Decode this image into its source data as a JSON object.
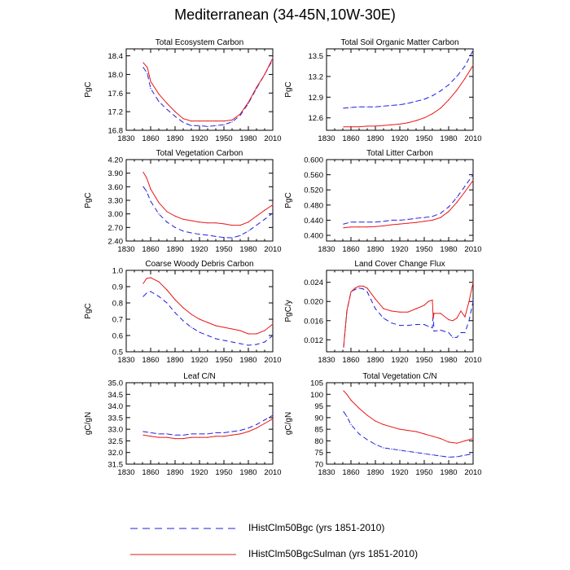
{
  "title": "Mediterranean (34-45N,10W-30E)",
  "colors": {
    "bgc": "#1f1fe0",
    "sulman": "#e81818",
    "axis": "#000000"
  },
  "legend": [
    {
      "label": "IHistClm50Bgc (yrs 1851-2010)",
      "color": "#1f1fe0",
      "style": "dashed"
    },
    {
      "label": "IHistClm50BgcSulman (yrs 1851-2010)",
      "color": "#e81818",
      "style": "solid"
    }
  ],
  "chart_data": [
    {
      "type": "line",
      "title": "Total Ecosystem Carbon",
      "ylabel": "PgC",
      "xlim": [
        1830,
        2010
      ],
      "xticks": [
        "1830",
        "1860",
        "1890",
        "1920",
        "1950",
        "1980",
        "2010"
      ],
      "ylim": [
        16.8,
        18.55
      ],
      "yticks": [
        "16.8",
        "17.2",
        "17.6",
        "18.0",
        "18.4"
      ],
      "series": [
        {
          "name": "IHistClm50Bgc",
          "x": [
            1851,
            1856,
            1860,
            1870,
            1880,
            1890,
            1900,
            1910,
            1920,
            1930,
            1940,
            1950,
            1960,
            1970,
            1980,
            1990,
            2000,
            2010
          ],
          "y": [
            18.15,
            18.02,
            17.7,
            17.42,
            17.25,
            17.1,
            16.97,
            16.9,
            16.9,
            16.88,
            16.9,
            16.92,
            16.98,
            17.12,
            17.38,
            17.7,
            18.0,
            18.32
          ]
        },
        {
          "name": "IHistClm50BgcSulman",
          "x": [
            1851,
            1856,
            1860,
            1870,
            1880,
            1890,
            1900,
            1910,
            1920,
            1930,
            1940,
            1950,
            1960,
            1970,
            1980,
            1990,
            2000,
            2010
          ],
          "y": [
            18.25,
            18.15,
            17.85,
            17.58,
            17.38,
            17.2,
            17.05,
            17.0,
            17.0,
            17.0,
            17.0,
            17.0,
            17.02,
            17.15,
            17.4,
            17.72,
            18.0,
            18.35
          ]
        }
      ]
    },
    {
      "type": "line",
      "title": "Total Soil Organic Matter Carbon",
      "ylabel": "PgC",
      "xlim": [
        1830,
        2010
      ],
      "xticks": [
        "1830",
        "1860",
        "1890",
        "1920",
        "1950",
        "1980",
        "2010"
      ],
      "ylim": [
        12.42,
        13.6
      ],
      "yticks": [
        "12.6",
        "12.9",
        "13.2",
        "13.5"
      ],
      "series": [
        {
          "name": "IHistClm50Bgc",
          "x": [
            1851,
            1860,
            1870,
            1880,
            1890,
            1900,
            1910,
            1920,
            1930,
            1940,
            1950,
            1960,
            1970,
            1980,
            1990,
            2000,
            2010
          ],
          "y": [
            12.74,
            12.75,
            12.76,
            12.76,
            12.76,
            12.77,
            12.78,
            12.79,
            12.81,
            12.84,
            12.87,
            12.92,
            12.99,
            13.08,
            13.2,
            13.35,
            13.58
          ]
        },
        {
          "name": "IHistClm50BgcSulman",
          "x": [
            1851,
            1860,
            1870,
            1880,
            1890,
            1900,
            1910,
            1920,
            1930,
            1940,
            1950,
            1960,
            1970,
            1980,
            1990,
            2000,
            2010
          ],
          "y": [
            12.47,
            12.47,
            12.47,
            12.48,
            12.48,
            12.49,
            12.5,
            12.51,
            12.53,
            12.56,
            12.6,
            12.66,
            12.74,
            12.86,
            13.0,
            13.17,
            13.36
          ]
        }
      ]
    },
    {
      "type": "line",
      "title": "Total Vegetation Carbon",
      "ylabel": "PgC",
      "xlim": [
        1830,
        2010
      ],
      "xticks": [
        "1830",
        "1860",
        "1890",
        "1920",
        "1950",
        "1980",
        "2010"
      ],
      "ylim": [
        2.4,
        4.2
      ],
      "yticks": [
        "2.40",
        "2.70",
        "3.00",
        "3.30",
        "3.60",
        "3.90",
        "4.20"
      ],
      "series": [
        {
          "name": "IHistClm50Bgc",
          "x": [
            1851,
            1855,
            1860,
            1870,
            1880,
            1890,
            1900,
            1910,
            1920,
            1930,
            1940,
            1950,
            1960,
            1970,
            1980,
            1990,
            2000,
            2010
          ],
          "y": [
            3.6,
            3.5,
            3.28,
            3.0,
            2.82,
            2.7,
            2.62,
            2.58,
            2.55,
            2.53,
            2.5,
            2.48,
            2.47,
            2.52,
            2.62,
            2.75,
            2.88,
            3.02
          ]
        },
        {
          "name": "IHistClm50BgcSulman",
          "x": [
            1851,
            1855,
            1860,
            1870,
            1880,
            1890,
            1900,
            1910,
            1920,
            1930,
            1940,
            1950,
            1960,
            1970,
            1980,
            1990,
            2000,
            2010
          ],
          "y": [
            3.92,
            3.8,
            3.55,
            3.25,
            3.05,
            2.95,
            2.88,
            2.85,
            2.82,
            2.8,
            2.8,
            2.78,
            2.75,
            2.75,
            2.82,
            2.95,
            3.08,
            3.2
          ]
        }
      ]
    },
    {
      "type": "line",
      "title": "Total Litter Carbon",
      "ylabel": "PgC",
      "xlim": [
        1830,
        2010
      ],
      "xticks": [
        "1830",
        "1860",
        "1890",
        "1920",
        "1950",
        "1980",
        "2010"
      ],
      "ylim": [
        0.385,
        0.6
      ],
      "yticks": [
        "0.400",
        "0.440",
        "0.480",
        "0.520",
        "0.560",
        "0.600"
      ],
      "series": [
        {
          "name": "IHistClm50Bgc",
          "x": [
            1851,
            1860,
            1870,
            1880,
            1890,
            1900,
            1910,
            1920,
            1930,
            1940,
            1950,
            1960,
            1970,
            1980,
            1990,
            2000,
            2010
          ],
          "y": [
            0.43,
            0.435,
            0.435,
            0.435,
            0.435,
            0.437,
            0.44,
            0.44,
            0.442,
            0.445,
            0.447,
            0.45,
            0.458,
            0.475,
            0.5,
            0.53,
            0.56
          ]
        },
        {
          "name": "IHistClm50BgcSulman",
          "x": [
            1851,
            1860,
            1870,
            1880,
            1890,
            1900,
            1910,
            1920,
            1930,
            1940,
            1950,
            1960,
            1970,
            1980,
            1990,
            2000,
            2010
          ],
          "y": [
            0.42,
            0.422,
            0.422,
            0.422,
            0.423,
            0.425,
            0.428,
            0.43,
            0.432,
            0.434,
            0.437,
            0.44,
            0.447,
            0.463,
            0.487,
            0.515,
            0.545
          ]
        }
      ]
    },
    {
      "type": "line",
      "title": "Coarse Woody Debris Carbon",
      "ylabel": "PgC",
      "xlim": [
        1830,
        2010
      ],
      "xticks": [
        "1830",
        "1860",
        "1890",
        "1920",
        "1950",
        "1980",
        "2010"
      ],
      "ylim": [
        0.5,
        1.0
      ],
      "yticks": [
        "0.5",
        "0.6",
        "0.7",
        "0.8",
        "0.9",
        "1.0"
      ],
      "series": [
        {
          "name": "IHistClm50Bgc",
          "x": [
            1851,
            1855,
            1860,
            1870,
            1880,
            1890,
            1900,
            1910,
            1920,
            1930,
            1940,
            1950,
            1960,
            1970,
            1980,
            1990,
            2000,
            2010
          ],
          "y": [
            0.84,
            0.86,
            0.87,
            0.84,
            0.8,
            0.74,
            0.69,
            0.65,
            0.62,
            0.6,
            0.58,
            0.57,
            0.56,
            0.55,
            0.54,
            0.545,
            0.56,
            0.6
          ]
        },
        {
          "name": "IHistClm50BgcSulman",
          "x": [
            1851,
            1855,
            1860,
            1870,
            1880,
            1890,
            1900,
            1910,
            1920,
            1930,
            1940,
            1950,
            1960,
            1970,
            1980,
            1990,
            2000,
            2010
          ],
          "y": [
            0.92,
            0.95,
            0.955,
            0.93,
            0.88,
            0.82,
            0.77,
            0.73,
            0.7,
            0.68,
            0.66,
            0.65,
            0.64,
            0.63,
            0.61,
            0.61,
            0.63,
            0.67
          ]
        }
      ]
    },
    {
      "type": "line",
      "title": "Land Cover Change Flux",
      "ylabel": "PgC/y",
      "xlim": [
        1830,
        2010
      ],
      "xticks": [
        "1830",
        "1860",
        "1890",
        "1920",
        "1950",
        "1980",
        "2010"
      ],
      "ylim": [
        0.0095,
        0.0265
      ],
      "yticks": [
        "0.012",
        "0.016",
        "0.020",
        "0.024"
      ],
      "series": [
        {
          "name": "IHistClm50Bgc",
          "x": [
            1851,
            1855,
            1860,
            1865,
            1870,
            1875,
            1880,
            1890,
            1900,
            1910,
            1920,
            1930,
            1940,
            1950,
            1955,
            1960,
            1961,
            1962,
            1970,
            1980,
            1985,
            1990,
            1995,
            2000,
            2005,
            2010
          ],
          "y": [
            0.0105,
            0.018,
            0.022,
            0.0225,
            0.0228,
            0.0226,
            0.022,
            0.0185,
            0.0165,
            0.0155,
            0.015,
            0.015,
            0.0152,
            0.0152,
            0.0148,
            0.0145,
            0.0175,
            0.0138,
            0.014,
            0.0135,
            0.0125,
            0.0125,
            0.0135,
            0.0135,
            0.016,
            0.02
          ]
        },
        {
          "name": "IHistClm50BgcSulman",
          "x": [
            1851,
            1855,
            1860,
            1865,
            1870,
            1875,
            1880,
            1890,
            1900,
            1910,
            1920,
            1930,
            1940,
            1950,
            1955,
            1960,
            1961,
            1962,
            1970,
            1980,
            1985,
            1990,
            1995,
            2000,
            2005,
            2010
          ],
          "y": [
            0.0105,
            0.018,
            0.022,
            0.0228,
            0.0232,
            0.0232,
            0.0228,
            0.0205,
            0.0185,
            0.018,
            0.0178,
            0.0178,
            0.0185,
            0.0192,
            0.02,
            0.0203,
            0.0165,
            0.0175,
            0.0175,
            0.0162,
            0.016,
            0.0165,
            0.018,
            0.0168,
            0.02,
            0.024
          ]
        }
      ]
    },
    {
      "type": "line",
      "title": "Leaf C/N",
      "ylabel": "gC/gN",
      "xlim": [
        1830,
        2010
      ],
      "xticks": [
        "1830",
        "1860",
        "1890",
        "1920",
        "1950",
        "1980",
        "2010"
      ],
      "ylim": [
        31.5,
        35.0
      ],
      "yticks": [
        "31.5",
        "32.0",
        "32.5",
        "33.0",
        "33.5",
        "34.0",
        "34.5",
        "35.0"
      ],
      "series": [
        {
          "name": "IHistClm50Bgc",
          "x": [
            1851,
            1860,
            1870,
            1880,
            1890,
            1900,
            1910,
            1920,
            1930,
            1940,
            1950,
            1960,
            1970,
            1980,
            1990,
            2000,
            2010
          ],
          "y": [
            32.9,
            32.85,
            32.8,
            32.8,
            32.75,
            32.75,
            32.8,
            32.8,
            32.8,
            32.85,
            32.85,
            32.9,
            32.95,
            33.05,
            33.2,
            33.4,
            33.6
          ]
        },
        {
          "name": "IHistClm50BgcSulman",
          "x": [
            1851,
            1860,
            1870,
            1880,
            1890,
            1900,
            1910,
            1920,
            1930,
            1940,
            1950,
            1960,
            1970,
            1980,
            1990,
            2000,
            2010
          ],
          "y": [
            32.75,
            32.7,
            32.65,
            32.65,
            32.6,
            32.6,
            32.65,
            32.65,
            32.65,
            32.7,
            32.7,
            32.75,
            32.8,
            32.9,
            33.05,
            33.25,
            33.45
          ]
        }
      ]
    },
    {
      "type": "line",
      "title": "Total Vegetation C/N",
      "ylabel": "gC/gN",
      "xlim": [
        1830,
        2010
      ],
      "xticks": [
        "1830",
        "1860",
        "1890",
        "1920",
        "1950",
        "1980",
        "2010"
      ],
      "ylim": [
        70,
        105
      ],
      "yticks": [
        "70",
        "75",
        "80",
        "85",
        "90",
        "95",
        "100",
        "105"
      ],
      "series": [
        {
          "name": "IHistClm50Bgc",
          "x": [
            1851,
            1855,
            1860,
            1870,
            1880,
            1890,
            1900,
            1910,
            1920,
            1930,
            1940,
            1950,
            1960,
            1970,
            1980,
            1990,
            2000,
            2010
          ],
          "y": [
            92.5,
            90.5,
            87.0,
            83.0,
            80.5,
            78.5,
            77.0,
            76.5,
            76.0,
            75.5,
            75.0,
            74.5,
            74.0,
            73.5,
            73.0,
            73.2,
            73.8,
            74.5
          ]
        },
        {
          "name": "IHistClm50BgcSulman",
          "x": [
            1851,
            1855,
            1860,
            1870,
            1880,
            1890,
            1900,
            1910,
            1920,
            1930,
            1940,
            1950,
            1960,
            1970,
            1980,
            1990,
            2000,
            2010
          ],
          "y": [
            101.5,
            100.0,
            97.5,
            94.0,
            91.0,
            88.5,
            87.0,
            86.0,
            85.0,
            84.5,
            84.0,
            83.0,
            82.0,
            81.0,
            79.5,
            79.0,
            80.0,
            81.0
          ]
        }
      ]
    }
  ]
}
